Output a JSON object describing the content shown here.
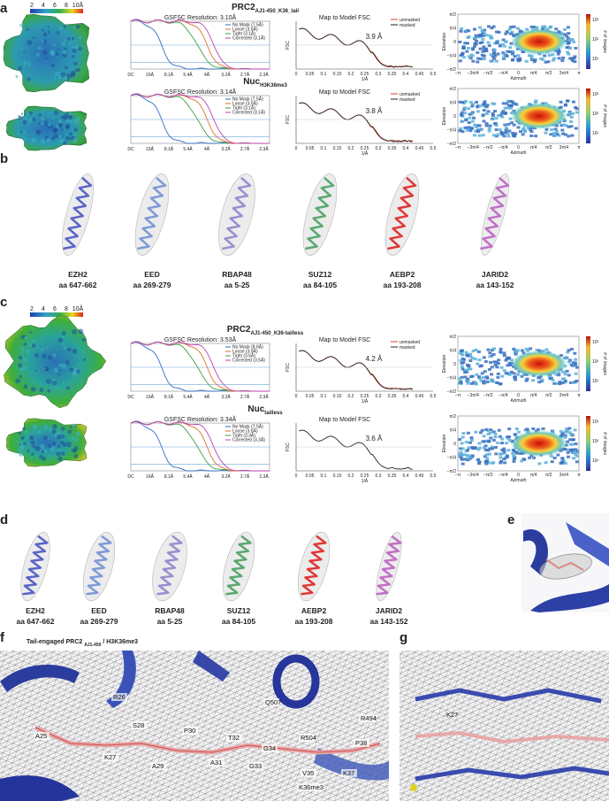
{
  "panels": {
    "a": {
      "label": "a",
      "colorbar_ticks": [
        "2",
        "4",
        "6",
        "8",
        "10Å"
      ],
      "rows": [
        {
          "title": "PRC2",
          "title_sub": "AJ1-450_K36_tail",
          "gsfsc_title": "GSFSC Resolution: 3.10Å",
          "gsfsc_legend": [
            "No Mask (7.5Å)",
            "Loose (3.5Å)",
            "Tight (3.1Å)",
            "Corrected (3.1Å)"
          ],
          "fsc_title": "Map to Model  FSC",
          "fsc_legend": [
            "unmasked",
            "masked"
          ],
          "fsc_resolution": "3.9 Å"
        },
        {
          "title": "Nuc",
          "title_sub": "H3K36me3",
          "gsfsc_title": "GSFSC Resolution: 3.14Å",
          "gsfsc_legend": [
            "No Mask (7.5Å)",
            "Loose (3.5Å)",
            "Tight (3.1Å)",
            "Corrected (3.1Å)"
          ],
          "fsc_title": "Map to Model  FSC",
          "fsc_legend": [
            "unmasked",
            "masked"
          ],
          "fsc_resolution": "3.8 Å"
        }
      ]
    },
    "b": {
      "label": "b",
      "residues": [
        {
          "name": "EZH2",
          "range": "aa 647-662"
        },
        {
          "name": "EED",
          "range": "aa 269-279"
        },
        {
          "name": "RBAP48",
          "range": "aa 5-25"
        },
        {
          "name": "SUZ12",
          "range": "aa 84-105"
        },
        {
          "name": "AEBP2",
          "range": "aa 193-208"
        },
        {
          "name": "JARID2",
          "range": "aa 143-152"
        }
      ]
    },
    "c": {
      "label": "c",
      "colorbar_ticks": [
        "2",
        "4",
        "6",
        "8",
        "10Å"
      ],
      "rows": [
        {
          "title": "PRC2",
          "title_sub": "AJ1-450_K36-tailless",
          "gsfsc_title": "GSFSC Resolution: 3.53Å",
          "gsfsc_legend": [
            "No Mask (8.6Å)",
            "Loose (3.9Å)",
            "Tight (3.5Å)",
            "Corrected (3.5Å)"
          ],
          "fsc_title": "Map to Model  FSC",
          "fsc_legend": [
            "unmasked",
            "masked"
          ],
          "fsc_resolution": "4.2 Å"
        },
        {
          "title": "Nuc",
          "title_sub": "tailless",
          "gsfsc_title": "GSFSC Resolution: 3.34Å",
          "gsfsc_legend": [
            "No Mask (7.5Å)",
            "Loose (3.6Å)",
            "Tight (3.3Å)",
            "Corrected (3.3Å)"
          ],
          "fsc_title": "Map to Model  FSC",
          "fsc_resolution": "3.6 Å"
        }
      ]
    },
    "d": {
      "label": "d",
      "residues": [
        {
          "name": "EZH2",
          "range": "aa 647-662"
        },
        {
          "name": "EED",
          "range": "aa 269-279"
        },
        {
          "name": "RBAP48",
          "range": "aa 5-25"
        },
        {
          "name": "SUZ12",
          "range": "aa 84-105"
        },
        {
          "name": "AEBP2",
          "range": "aa 193-208"
        },
        {
          "name": "JARID2",
          "range": "aa 143-152"
        }
      ]
    },
    "e": {
      "label": "e"
    },
    "f": {
      "label": "f",
      "title": "Tail-engaged PRC2 ",
      "title_sub": "AJ1-450",
      "title_rest": " / H3K36me3",
      "residue_labels": [
        "R26",
        "A25",
        "S28",
        "P30",
        "T32",
        "Q507",
        "R504",
        "R494",
        "G34",
        "P38",
        "K27",
        "A29",
        "A31",
        "G33",
        "V35",
        "K37",
        "K36me3"
      ]
    },
    "g": {
      "label": "g",
      "residue_labels": [
        "K27"
      ]
    }
  },
  "axes": {
    "gsfsc_xticks": [
      "DC",
      "16Å",
      "8.1Å",
      "5.4Å",
      "4Å",
      "3.2Å",
      "2.7Å",
      "2.3Å"
    ],
    "fsc_xticks": [
      "0",
      "0.05",
      "0.1",
      "0.15",
      "0.2",
      "0.25",
      "0.3",
      "0.35",
      "0.4",
      "0.45",
      "0.5"
    ],
    "fsc_xlabel": "1/Å",
    "fsc_ylabel": "FSC",
    "azimuth_ticks": [
      "−π",
      "−3π/4",
      "−π/2",
      "−π/4",
      "0",
      "π/4",
      "π/2",
      "3π/4",
      "π"
    ],
    "azimuth_label": "Azimuth",
    "elevation_ticks": [
      "π/2",
      "π/4",
      "0",
      "−π/4",
      "−π/2"
    ],
    "elevation_label": "Elevation",
    "count_label": "# of images",
    "count_ticks": [
      "10³",
      "10²",
      "10¹"
    ]
  }
}
